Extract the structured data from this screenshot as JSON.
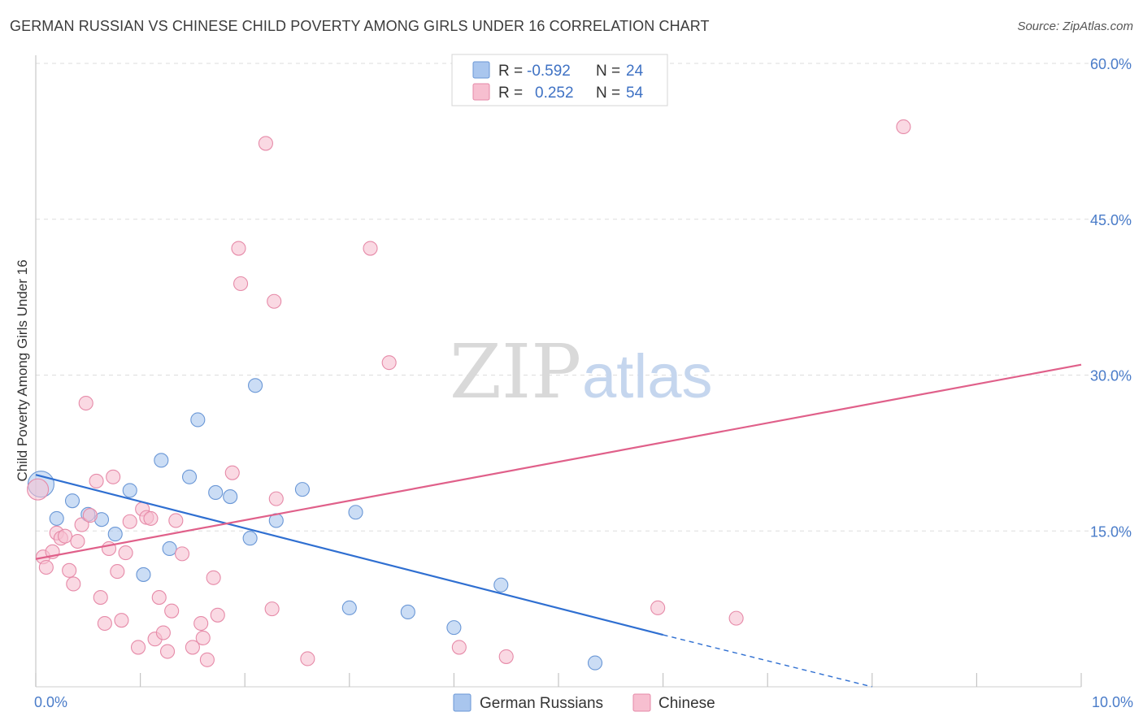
{
  "title": "GERMAN RUSSIAN VS CHINESE CHILD POVERTY AMONG GIRLS UNDER 16 CORRELATION CHART",
  "source": "Source: ZipAtlas.com",
  "watermark": {
    "zip": "ZIP",
    "atlas": "atlas"
  },
  "legend": {
    "rows": [
      {
        "r_label": "R =",
        "r_value": "-0.592",
        "n_label": "N =",
        "n_value": "24",
        "color": "#a9c6ee",
        "stroke": "#6a97d6"
      },
      {
        "r_label": "R =",
        "r_value": "0.252",
        "n_label": "N =",
        "n_value": "54",
        "color": "#f7bfd0",
        "stroke": "#e68aa8"
      }
    ]
  },
  "bottom_legend": [
    "German Russians",
    "Chinese"
  ],
  "chart_data": {
    "type": "scatter",
    "title": "GERMAN RUSSIAN VS CHINESE CHILD POVERTY AMONG GIRLS UNDER 16 CORRELATION CHART",
    "xlabel": "",
    "ylabel": "Child Poverty Among Girls Under 16",
    "xlim": [
      0,
      10
    ],
    "ylim": [
      0,
      60
    ],
    "x_tick_labels": [
      "0.0%",
      "10.0%"
    ],
    "y_tick_labels": [
      "15.0%",
      "30.0%",
      "45.0%",
      "60.0%"
    ],
    "y_ticks": [
      15,
      30,
      45,
      60
    ],
    "grid": true,
    "legend_placement": "top-center",
    "series": [
      {
        "name": "German Russians",
        "color": "#a9c6ee",
        "line_color": "#2f6fd1",
        "points": [
          [
            0.05,
            19.5
          ],
          [
            0.2,
            16.2
          ],
          [
            0.35,
            17.9
          ],
          [
            0.5,
            16.6
          ],
          [
            0.63,
            16.1
          ],
          [
            0.76,
            14.7
          ],
          [
            0.9,
            18.9
          ],
          [
            1.03,
            10.8
          ],
          [
            1.2,
            21.8
          ],
          [
            1.28,
            13.3
          ],
          [
            1.47,
            20.2
          ],
          [
            1.55,
            25.7
          ],
          [
            1.72,
            18.7
          ],
          [
            1.86,
            18.3
          ],
          [
            2.05,
            14.3
          ],
          [
            2.1,
            29.0
          ],
          [
            2.3,
            16.0
          ],
          [
            2.55,
            19.0
          ],
          [
            3.0,
            7.6
          ],
          [
            3.06,
            16.8
          ],
          [
            3.56,
            7.2
          ],
          [
            4.0,
            5.7
          ],
          [
            4.45,
            9.8
          ],
          [
            5.35,
            2.3
          ]
        ],
        "trend": {
          "x": [
            0,
            6.0
          ],
          "y": [
            20.4,
            5.0
          ],
          "dashed_to": [
            8.0,
            0
          ]
        }
      },
      {
        "name": "Chinese",
        "color": "#f7bfd0",
        "line_color": "#e0608a",
        "points": [
          [
            0.02,
            19.0
          ],
          [
            0.07,
            12.5
          ],
          [
            0.1,
            11.5
          ],
          [
            0.16,
            13.0
          ],
          [
            0.2,
            14.8
          ],
          [
            0.24,
            14.3
          ],
          [
            0.28,
            14.5
          ],
          [
            0.32,
            11.2
          ],
          [
            0.36,
            9.9
          ],
          [
            0.4,
            14.0
          ],
          [
            0.44,
            15.6
          ],
          [
            0.48,
            27.3
          ],
          [
            0.52,
            16.5
          ],
          [
            0.58,
            19.8
          ],
          [
            0.62,
            8.6
          ],
          [
            0.66,
            6.1
          ],
          [
            0.7,
            13.3
          ],
          [
            0.74,
            20.2
          ],
          [
            0.78,
            11.1
          ],
          [
            0.82,
            6.4
          ],
          [
            0.86,
            12.9
          ],
          [
            0.9,
            15.9
          ],
          [
            0.98,
            3.8
          ],
          [
            1.02,
            17.1
          ],
          [
            1.06,
            16.3
          ],
          [
            1.1,
            16.2
          ],
          [
            1.14,
            4.6
          ],
          [
            1.18,
            8.6
          ],
          [
            1.22,
            5.2
          ],
          [
            1.26,
            3.4
          ],
          [
            1.3,
            7.3
          ],
          [
            1.34,
            16.0
          ],
          [
            1.4,
            12.8
          ],
          [
            1.5,
            3.8
          ],
          [
            1.58,
            6.1
          ],
          [
            1.6,
            4.7
          ],
          [
            1.64,
            2.6
          ],
          [
            1.7,
            10.5
          ],
          [
            1.74,
            6.9
          ],
          [
            1.88,
            20.6
          ],
          [
            1.94,
            42.2
          ],
          [
            1.96,
            38.8
          ],
          [
            2.2,
            52.3
          ],
          [
            2.26,
            7.5
          ],
          [
            2.28,
            37.1
          ],
          [
            2.3,
            18.1
          ],
          [
            2.6,
            2.7
          ],
          [
            3.2,
            42.2
          ],
          [
            3.38,
            31.2
          ],
          [
            4.05,
            3.8
          ],
          [
            4.5,
            2.9
          ],
          [
            5.95,
            7.6
          ],
          [
            6.7,
            6.6
          ],
          [
            8.3,
            53.9
          ]
        ],
        "trend": {
          "x": [
            0,
            10.0
          ],
          "y": [
            12.3,
            31.0
          ]
        }
      }
    ]
  }
}
